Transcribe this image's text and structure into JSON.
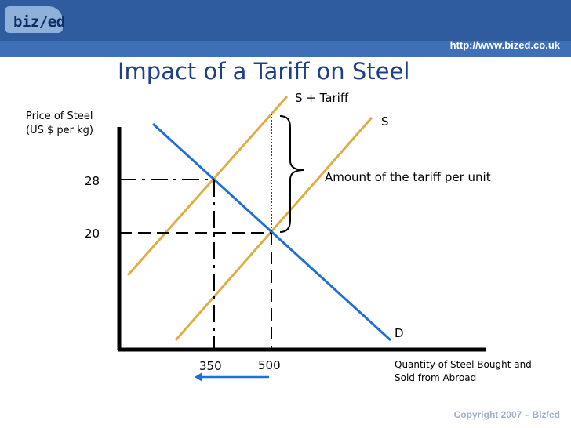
{
  "header": {
    "logo_text": "biz/ed",
    "url": "http://www.bized.co.uk"
  },
  "slide": {
    "title": "Impact of a Tariff on Steel",
    "copyright": "Copyright 2007 – Biz/ed"
  },
  "diagram": {
    "y_axis_label_1": "Price of Steel",
    "y_axis_label_2": "(US $ per kg)",
    "x_axis_label_1": "Quantity of Steel Bought and",
    "x_axis_label_2": "Sold from Abroad",
    "price_high": "28",
    "price_low": "20",
    "qty_low": "350",
    "qty_high": "500",
    "supply_tariff_label": "S + Tariff",
    "supply_label": "S",
    "demand_label": "D",
    "tariff_annotation": "Amount of the tariff per unit"
  },
  "colors": {
    "supply": "#e0ad45",
    "demand": "#1f6fd8",
    "arrow": "#1f6fd8",
    "title": "#1f3f87"
  }
}
